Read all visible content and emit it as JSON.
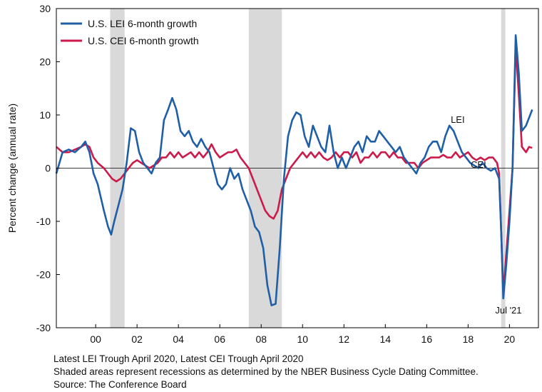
{
  "chart_data": {
    "type": "line",
    "title": "",
    "xlabel": "",
    "ylabel": "Percent change (annual rate)",
    "xlim": [
      1998.6,
      2021.9
    ],
    "ylim": [
      -30,
      30
    ],
    "y_ticks": [
      30,
      20,
      10,
      0,
      -10,
      -20,
      -30
    ],
    "x_ticks": [
      {
        "value": 2000.5,
        "label": "00"
      },
      {
        "value": 2002.5,
        "label": "02"
      },
      {
        "value": 2004.5,
        "label": "04"
      },
      {
        "value": 2006.5,
        "label": "06"
      },
      {
        "value": 2008.5,
        "label": "08"
      },
      {
        "value": 2010.5,
        "label": "10"
      },
      {
        "value": 2012.5,
        "label": "12"
      },
      {
        "value": 2014.5,
        "label": "14"
      },
      {
        "value": 2016.5,
        "label": "16"
      },
      {
        "value": 2018.5,
        "label": "18"
      },
      {
        "value": 2020.5,
        "label": "20"
      }
    ],
    "recessions": [
      [
        2001.2,
        2001.9
      ],
      [
        2007.9,
        2009.5
      ],
      [
        2020.1,
        2020.3
      ]
    ],
    "zero_line": true,
    "grid": false,
    "legend_position": "top-left",
    "series": [
      {
        "name": "U.S. LEI 6-month growth",
        "color": "#1f5fa8",
        "points": [
          [
            1998.6,
            -1
          ],
          [
            1998.9,
            3
          ],
          [
            1999.2,
            3.5
          ],
          [
            1999.5,
            3
          ],
          [
            1999.8,
            4
          ],
          [
            2000.0,
            5
          ],
          [
            2000.2,
            3
          ],
          [
            2000.4,
            -1
          ],
          [
            2000.6,
            -3
          ],
          [
            2000.9,
            -8
          ],
          [
            2001.1,
            -11
          ],
          [
            2001.25,
            -12.5
          ],
          [
            2001.4,
            -10
          ],
          [
            2001.6,
            -7
          ],
          [
            2001.8,
            -4
          ],
          [
            2002.0,
            1
          ],
          [
            2002.2,
            7.5
          ],
          [
            2002.4,
            7
          ],
          [
            2002.6,
            3
          ],
          [
            2002.8,
            1
          ],
          [
            2003.0,
            0
          ],
          [
            2003.2,
            -1
          ],
          [
            2003.4,
            1
          ],
          [
            2003.6,
            2
          ],
          [
            2003.8,
            9
          ],
          [
            2004.0,
            11
          ],
          [
            2004.2,
            13.2
          ],
          [
            2004.4,
            11
          ],
          [
            2004.6,
            7
          ],
          [
            2004.8,
            6
          ],
          [
            2005.0,
            7
          ],
          [
            2005.2,
            5
          ],
          [
            2005.4,
            4
          ],
          [
            2005.6,
            5.5
          ],
          [
            2005.8,
            4
          ],
          [
            2006.0,
            3
          ],
          [
            2006.2,
            0
          ],
          [
            2006.4,
            -3
          ],
          [
            2006.6,
            -4
          ],
          [
            2006.8,
            -3
          ],
          [
            2007.0,
            0
          ],
          [
            2007.2,
            -2
          ],
          [
            2007.4,
            -1
          ],
          [
            2007.6,
            -4
          ],
          [
            2007.8,
            -6
          ],
          [
            2008.0,
            -8
          ],
          [
            2008.2,
            -11
          ],
          [
            2008.4,
            -12
          ],
          [
            2008.6,
            -15
          ],
          [
            2008.8,
            -22
          ],
          [
            2009.0,
            -25.8
          ],
          [
            2009.2,
            -25.5
          ],
          [
            2009.4,
            -15
          ],
          [
            2009.6,
            -2
          ],
          [
            2009.8,
            6
          ],
          [
            2010.0,
            9
          ],
          [
            2010.2,
            10.5
          ],
          [
            2010.4,
            10
          ],
          [
            2010.6,
            6
          ],
          [
            2010.8,
            4
          ],
          [
            2011.0,
            8
          ],
          [
            2011.2,
            6
          ],
          [
            2011.4,
            4
          ],
          [
            2011.6,
            3
          ],
          [
            2011.8,
            8
          ],
          [
            2012.0,
            3
          ],
          [
            2012.2,
            0
          ],
          [
            2012.4,
            2
          ],
          [
            2012.6,
            0
          ],
          [
            2012.8,
            2
          ],
          [
            2013.0,
            4
          ],
          [
            2013.2,
            5
          ],
          [
            2013.4,
            3
          ],
          [
            2013.6,
            6
          ],
          [
            2013.8,
            5
          ],
          [
            2014.0,
            5
          ],
          [
            2014.2,
            7
          ],
          [
            2014.4,
            6
          ],
          [
            2014.6,
            5
          ],
          [
            2014.8,
            4
          ],
          [
            2015.0,
            3
          ],
          [
            2015.2,
            4
          ],
          [
            2015.4,
            2
          ],
          [
            2015.6,
            1
          ],
          [
            2015.8,
            0
          ],
          [
            2016.0,
            -1
          ],
          [
            2016.2,
            1
          ],
          [
            2016.4,
            2
          ],
          [
            2016.6,
            4
          ],
          [
            2016.8,
            5
          ],
          [
            2017.0,
            5
          ],
          [
            2017.2,
            3
          ],
          [
            2017.4,
            6
          ],
          [
            2017.6,
            8
          ],
          [
            2017.8,
            7
          ],
          [
            2018.0,
            5
          ],
          [
            2018.2,
            3
          ],
          [
            2018.4,
            2
          ],
          [
            2018.6,
            1
          ],
          [
            2018.8,
            0.5
          ],
          [
            2019.0,
            0
          ],
          [
            2019.2,
            1
          ],
          [
            2019.4,
            0
          ],
          [
            2019.6,
            -0.5
          ],
          [
            2019.8,
            0
          ],
          [
            2020.0,
            -2
          ],
          [
            2020.1,
            -12
          ],
          [
            2020.2,
            -24.5
          ],
          [
            2020.35,
            -18
          ],
          [
            2020.5,
            -10
          ],
          [
            2020.65,
            0
          ],
          [
            2020.8,
            25
          ],
          [
            2020.95,
            18
          ],
          [
            2021.1,
            7
          ],
          [
            2021.3,
            8
          ],
          [
            2021.5,
            10
          ],
          [
            2021.6,
            11
          ]
        ]
      },
      {
        "name": "U.S. CEI 6-month growth",
        "color": "#cc1a4a",
        "points": [
          [
            1998.6,
            4
          ],
          [
            1998.9,
            3
          ],
          [
            1999.2,
            3
          ],
          [
            1999.5,
            3.5
          ],
          [
            1999.8,
            4
          ],
          [
            2000.0,
            4.5
          ],
          [
            2000.2,
            4
          ],
          [
            2000.4,
            2
          ],
          [
            2000.6,
            1
          ],
          [
            2000.9,
            0
          ],
          [
            2001.1,
            -1
          ],
          [
            2001.3,
            -2
          ],
          [
            2001.5,
            -2.5
          ],
          [
            2001.7,
            -2
          ],
          [
            2001.9,
            -1
          ],
          [
            2002.1,
            0
          ],
          [
            2002.3,
            1
          ],
          [
            2002.5,
            1.5
          ],
          [
            2002.7,
            1
          ],
          [
            2002.9,
            0.5
          ],
          [
            2003.1,
            0
          ],
          [
            2003.3,
            0.5
          ],
          [
            2003.5,
            1
          ],
          [
            2003.7,
            2
          ],
          [
            2003.9,
            2
          ],
          [
            2004.1,
            3
          ],
          [
            2004.3,
            2
          ],
          [
            2004.5,
            3
          ],
          [
            2004.7,
            2
          ],
          [
            2004.9,
            2.5
          ],
          [
            2005.1,
            3
          ],
          [
            2005.3,
            2
          ],
          [
            2005.5,
            3
          ],
          [
            2005.7,
            2
          ],
          [
            2005.9,
            3
          ],
          [
            2006.1,
            4.5
          ],
          [
            2006.3,
            3
          ],
          [
            2006.5,
            2
          ],
          [
            2006.7,
            2.5
          ],
          [
            2006.9,
            3
          ],
          [
            2007.1,
            3
          ],
          [
            2007.3,
            3.5
          ],
          [
            2007.5,
            2
          ],
          [
            2007.7,
            1
          ],
          [
            2007.9,
            0
          ],
          [
            2008.1,
            -2
          ],
          [
            2008.3,
            -4
          ],
          [
            2008.5,
            -6
          ],
          [
            2008.7,
            -8
          ],
          [
            2008.9,
            -9
          ],
          [
            2009.1,
            -9.5
          ],
          [
            2009.3,
            -8
          ],
          [
            2009.5,
            -4
          ],
          [
            2009.7,
            -2
          ],
          [
            2009.9,
            0
          ],
          [
            2010.1,
            1
          ],
          [
            2010.3,
            2
          ],
          [
            2010.5,
            3
          ],
          [
            2010.7,
            2
          ],
          [
            2010.9,
            3
          ],
          [
            2011.1,
            2
          ],
          [
            2011.3,
            3
          ],
          [
            2011.5,
            2
          ],
          [
            2011.7,
            1.5
          ],
          [
            2011.9,
            2
          ],
          [
            2012.1,
            3
          ],
          [
            2012.3,
            2
          ],
          [
            2012.5,
            3
          ],
          [
            2012.7,
            3
          ],
          [
            2012.9,
            2
          ],
          [
            2013.1,
            3
          ],
          [
            2013.3,
            1
          ],
          [
            2013.5,
            2
          ],
          [
            2013.7,
            2
          ],
          [
            2013.9,
            3
          ],
          [
            2014.1,
            2
          ],
          [
            2014.3,
            3
          ],
          [
            2014.5,
            3
          ],
          [
            2014.7,
            2
          ],
          [
            2014.9,
            3
          ],
          [
            2015.1,
            2
          ],
          [
            2015.3,
            2
          ],
          [
            2015.5,
            1
          ],
          [
            2015.7,
            1
          ],
          [
            2015.9,
            1
          ],
          [
            2016.1,
            0
          ],
          [
            2016.3,
            1
          ],
          [
            2016.5,
            1.5
          ],
          [
            2016.7,
            2
          ],
          [
            2016.9,
            2
          ],
          [
            2017.1,
            2
          ],
          [
            2017.3,
            2.5
          ],
          [
            2017.5,
            2
          ],
          [
            2017.7,
            2
          ],
          [
            2017.9,
            3
          ],
          [
            2018.1,
            2
          ],
          [
            2018.3,
            2.5
          ],
          [
            2018.5,
            3
          ],
          [
            2018.7,
            2
          ],
          [
            2018.9,
            1.5
          ],
          [
            2019.1,
            2
          ],
          [
            2019.3,
            1.5
          ],
          [
            2019.5,
            2
          ],
          [
            2019.7,
            2
          ],
          [
            2019.9,
            1
          ],
          [
            2020.0,
            -1
          ],
          [
            2020.1,
            -12
          ],
          [
            2020.2,
            -23.5
          ],
          [
            2020.35,
            -16
          ],
          [
            2020.5,
            -8
          ],
          [
            2020.65,
            0
          ],
          [
            2020.8,
            23
          ],
          [
            2020.95,
            14
          ],
          [
            2021.1,
            4
          ],
          [
            2021.3,
            3
          ],
          [
            2021.45,
            4
          ],
          [
            2021.6,
            3.8
          ]
        ]
      }
    ],
    "annotations": [
      {
        "text": "LEI",
        "x": 2018.0,
        "y": 8.5
      },
      {
        "text": "CEI",
        "x": 2019.0,
        "y": 0.1
      },
      {
        "text": "Jul '21",
        "x": 2020.45,
        "y": -27.3
      }
    ]
  },
  "footer": {
    "line1": "Latest LEI Trough April 2020, Latest CEI Trough April 2020",
    "line2": "Shaded areas represent recessions as determined by the NBER Business Cycle Dating Committee.",
    "line3": "Source: The Conference Board"
  }
}
